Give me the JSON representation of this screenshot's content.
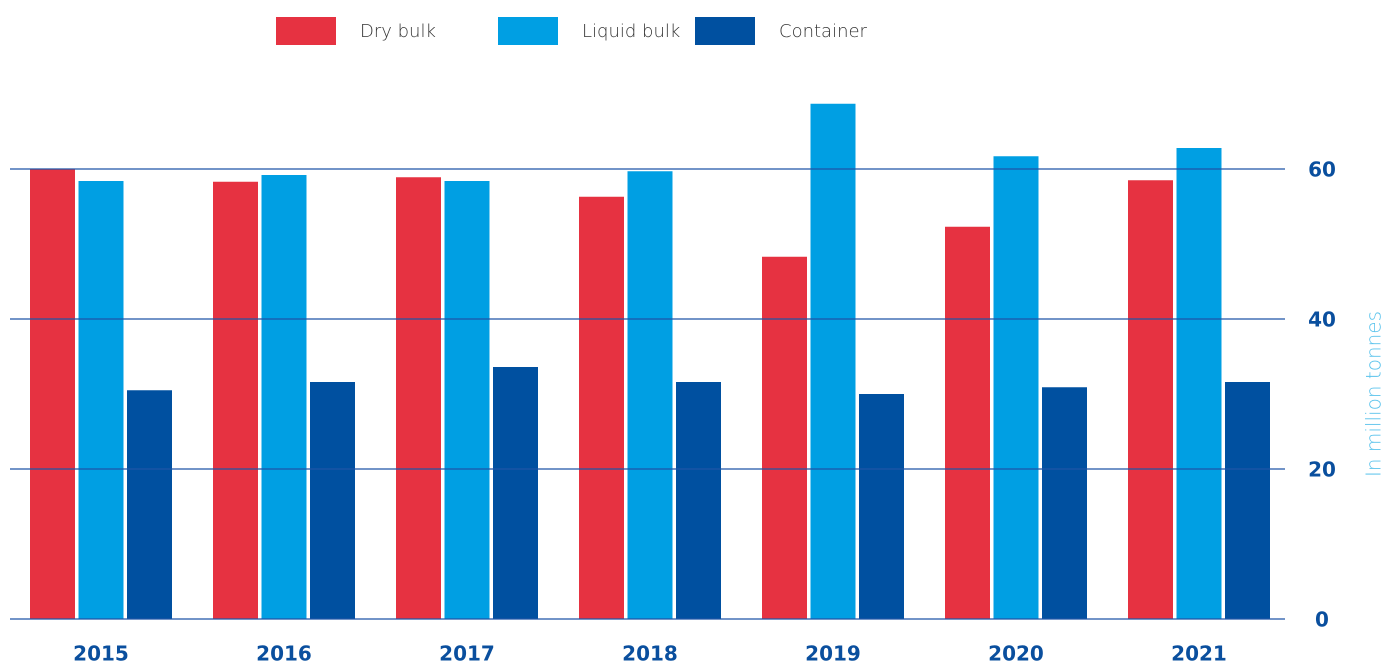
{
  "chart_data": {
    "type": "bar",
    "y_label": "In million tonnes",
    "categories": [
      "2015",
      "2016",
      "2017",
      "2018",
      "2019",
      "2020",
      "2021"
    ],
    "series": [
      {
        "name": "Dry bulk",
        "color": "#e63241",
        "values": [
          60.0,
          58.3,
          58.9,
          56.3,
          48.3,
          52.3,
          58.5
        ]
      },
      {
        "name": "Liquid bulk",
        "color": "#009fe3",
        "values": [
          58.4,
          59.2,
          58.4,
          59.7,
          68.7,
          61.7,
          62.8
        ]
      },
      {
        "name": "Container",
        "color": "#0050a0",
        "values": [
          30.5,
          31.6,
          33.6,
          31.6,
          30.0,
          30.9,
          31.6
        ]
      }
    ],
    "ylim": [
      0,
      70
    ],
    "yticks": [
      0,
      20,
      40,
      60
    ],
    "grid": true,
    "legend": "top"
  }
}
